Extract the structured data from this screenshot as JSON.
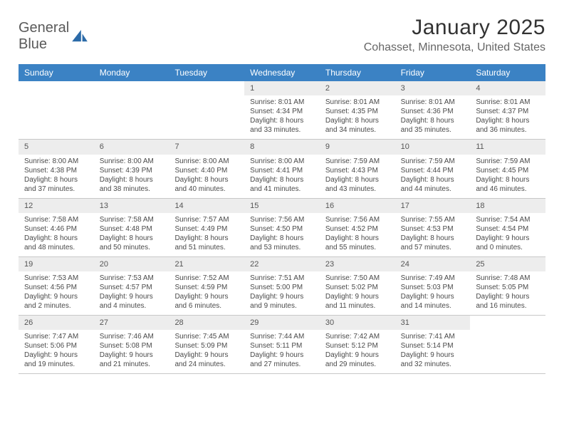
{
  "brand": {
    "name1": "General",
    "name2": "Blue"
  },
  "title": "January 2025",
  "location": "Cohasset, Minnesota, United States",
  "colors": {
    "header_bg": "#3b82c4",
    "header_fg": "#ffffff",
    "daynum_bg": "#ededed",
    "border": "#c8c8c8",
    "text": "#4a4a4a",
    "brand_gray": "#5a5a5a",
    "brand_blue": "#2b6aa8"
  },
  "daysOfWeek": [
    "Sunday",
    "Monday",
    "Tuesday",
    "Wednesday",
    "Thursday",
    "Friday",
    "Saturday"
  ],
  "weeks": [
    [
      null,
      null,
      null,
      {
        "n": "1",
        "sunrise": "8:01 AM",
        "sunset": "4:34 PM",
        "daylight": "8 hours and 33 minutes."
      },
      {
        "n": "2",
        "sunrise": "8:01 AM",
        "sunset": "4:35 PM",
        "daylight": "8 hours and 34 minutes."
      },
      {
        "n": "3",
        "sunrise": "8:01 AM",
        "sunset": "4:36 PM",
        "daylight": "8 hours and 35 minutes."
      },
      {
        "n": "4",
        "sunrise": "8:01 AM",
        "sunset": "4:37 PM",
        "daylight": "8 hours and 36 minutes."
      }
    ],
    [
      {
        "n": "5",
        "sunrise": "8:00 AM",
        "sunset": "4:38 PM",
        "daylight": "8 hours and 37 minutes."
      },
      {
        "n": "6",
        "sunrise": "8:00 AM",
        "sunset": "4:39 PM",
        "daylight": "8 hours and 38 minutes."
      },
      {
        "n": "7",
        "sunrise": "8:00 AM",
        "sunset": "4:40 PM",
        "daylight": "8 hours and 40 minutes."
      },
      {
        "n": "8",
        "sunrise": "8:00 AM",
        "sunset": "4:41 PM",
        "daylight": "8 hours and 41 minutes."
      },
      {
        "n": "9",
        "sunrise": "7:59 AM",
        "sunset": "4:43 PM",
        "daylight": "8 hours and 43 minutes."
      },
      {
        "n": "10",
        "sunrise": "7:59 AM",
        "sunset": "4:44 PM",
        "daylight": "8 hours and 44 minutes."
      },
      {
        "n": "11",
        "sunrise": "7:59 AM",
        "sunset": "4:45 PM",
        "daylight": "8 hours and 46 minutes."
      }
    ],
    [
      {
        "n": "12",
        "sunrise": "7:58 AM",
        "sunset": "4:46 PM",
        "daylight": "8 hours and 48 minutes."
      },
      {
        "n": "13",
        "sunrise": "7:58 AM",
        "sunset": "4:48 PM",
        "daylight": "8 hours and 50 minutes."
      },
      {
        "n": "14",
        "sunrise": "7:57 AM",
        "sunset": "4:49 PM",
        "daylight": "8 hours and 51 minutes."
      },
      {
        "n": "15",
        "sunrise": "7:56 AM",
        "sunset": "4:50 PM",
        "daylight": "8 hours and 53 minutes."
      },
      {
        "n": "16",
        "sunrise": "7:56 AM",
        "sunset": "4:52 PM",
        "daylight": "8 hours and 55 minutes."
      },
      {
        "n": "17",
        "sunrise": "7:55 AM",
        "sunset": "4:53 PM",
        "daylight": "8 hours and 57 minutes."
      },
      {
        "n": "18",
        "sunrise": "7:54 AM",
        "sunset": "4:54 PM",
        "daylight": "9 hours and 0 minutes."
      }
    ],
    [
      {
        "n": "19",
        "sunrise": "7:53 AM",
        "sunset": "4:56 PM",
        "daylight": "9 hours and 2 minutes."
      },
      {
        "n": "20",
        "sunrise": "7:53 AM",
        "sunset": "4:57 PM",
        "daylight": "9 hours and 4 minutes."
      },
      {
        "n": "21",
        "sunrise": "7:52 AM",
        "sunset": "4:59 PM",
        "daylight": "9 hours and 6 minutes."
      },
      {
        "n": "22",
        "sunrise": "7:51 AM",
        "sunset": "5:00 PM",
        "daylight": "9 hours and 9 minutes."
      },
      {
        "n": "23",
        "sunrise": "7:50 AM",
        "sunset": "5:02 PM",
        "daylight": "9 hours and 11 minutes."
      },
      {
        "n": "24",
        "sunrise": "7:49 AM",
        "sunset": "5:03 PM",
        "daylight": "9 hours and 14 minutes."
      },
      {
        "n": "25",
        "sunrise": "7:48 AM",
        "sunset": "5:05 PM",
        "daylight": "9 hours and 16 minutes."
      }
    ],
    [
      {
        "n": "26",
        "sunrise": "7:47 AM",
        "sunset": "5:06 PM",
        "daylight": "9 hours and 19 minutes."
      },
      {
        "n": "27",
        "sunrise": "7:46 AM",
        "sunset": "5:08 PM",
        "daylight": "9 hours and 21 minutes."
      },
      {
        "n": "28",
        "sunrise": "7:45 AM",
        "sunset": "5:09 PM",
        "daylight": "9 hours and 24 minutes."
      },
      {
        "n": "29",
        "sunrise": "7:44 AM",
        "sunset": "5:11 PM",
        "daylight": "9 hours and 27 minutes."
      },
      {
        "n": "30",
        "sunrise": "7:42 AM",
        "sunset": "5:12 PM",
        "daylight": "9 hours and 29 minutes."
      },
      {
        "n": "31",
        "sunrise": "7:41 AM",
        "sunset": "5:14 PM",
        "daylight": "9 hours and 32 minutes."
      },
      null
    ]
  ],
  "labels": {
    "sunrise": "Sunrise:",
    "sunset": "Sunset:",
    "daylight": "Daylight:"
  }
}
